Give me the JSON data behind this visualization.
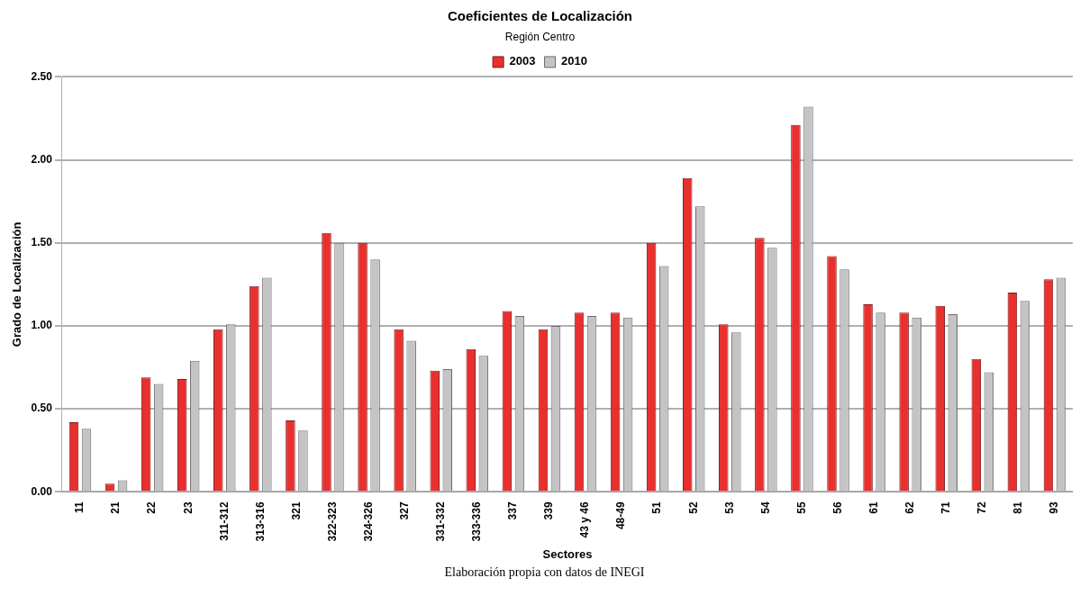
{
  "chart_data": {
    "type": "bar",
    "title": "Coeficientes de Localización",
    "subtitle": "Región Centro",
    "xlabel": "Sectores",
    "ylabel": "Grado de Localización",
    "categories": [
      "11",
      "21",
      "22",
      "23",
      "311-312",
      "313-316",
      "321",
      "322-323",
      "324-326",
      "327",
      "331-332",
      "333-336",
      "337",
      "339",
      "43 y 46",
      "48-49",
      "51",
      "52",
      "53",
      "54",
      "55",
      "56",
      "61",
      "62",
      "71",
      "72",
      "81",
      "93"
    ],
    "series": [
      {
        "name": "2003",
        "color": "#e8302e",
        "values": [
          0.42,
          0.05,
          0.69,
          0.68,
          0.98,
          1.24,
          0.43,
          1.56,
          1.5,
          0.98,
          0.73,
          0.86,
          1.09,
          0.98,
          1.08,
          1.08,
          1.5,
          1.89,
          1.01,
          1.53,
          2.21,
          1.42,
          1.13,
          1.08,
          1.12,
          0.8,
          1.2,
          1.28
        ]
      },
      {
        "name": "2010",
        "color": "#c4c4c4",
        "values": [
          0.38,
          0.07,
          0.65,
          0.79,
          1.01,
          1.29,
          0.37,
          1.5,
          1.4,
          0.91,
          0.74,
          0.82,
          1.06,
          1.0,
          1.06,
          1.05,
          1.36,
          1.72,
          0.96,
          1.47,
          2.32,
          1.34,
          1.08,
          1.05,
          1.07,
          0.72,
          1.15,
          1.29
        ]
      }
    ],
    "ylim": [
      0,
      2.5
    ],
    "yticks": [
      {
        "value": 0,
        "label": "0.00"
      },
      {
        "value": 0.5,
        "label": "0.50"
      },
      {
        "value": 1,
        "label": "1.00"
      },
      {
        "value": 1.5,
        "label": "1.50"
      },
      {
        "value": 2,
        "label": "2.00"
      },
      {
        "value": 2.5,
        "label": "2.50"
      }
    ],
    "grid": "y",
    "legend": "top",
    "annotations": [
      "Elaboración propia con datos de INEGI"
    ]
  }
}
